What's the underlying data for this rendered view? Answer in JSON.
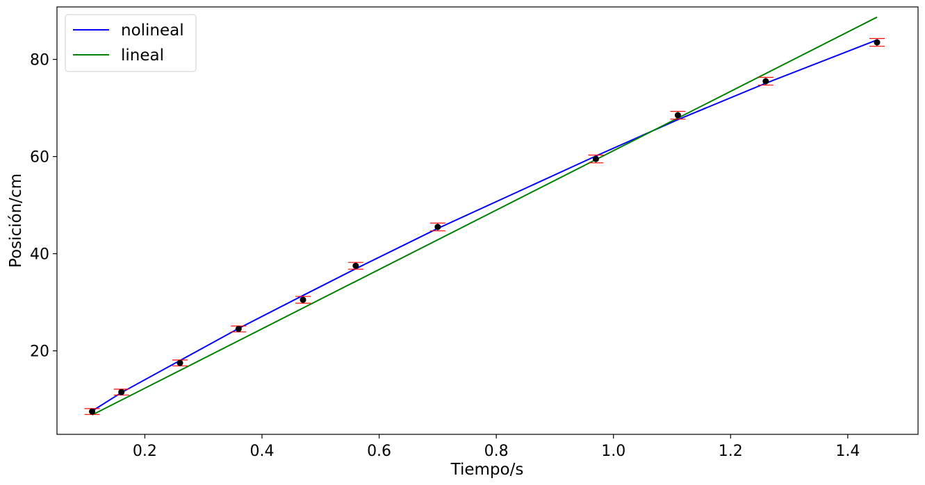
{
  "chart_data": {
    "type": "scatter",
    "xlabel": "Tiempo/s",
    "ylabel": "Posición/cm",
    "xlim": [
      0.05,
      1.52
    ],
    "ylim": [
      2.8,
      90.8
    ],
    "xticks": [
      {
        "value": 0.2,
        "label": "0.2"
      },
      {
        "value": 0.4,
        "label": "0.4"
      },
      {
        "value": 0.6,
        "label": "0.6"
      },
      {
        "value": 0.8,
        "label": "0.8"
      },
      {
        "value": 1.0,
        "label": "1.0"
      },
      {
        "value": 1.2,
        "label": "1.2"
      },
      {
        "value": 1.4,
        "label": "1.4"
      }
    ],
    "yticks": [
      {
        "value": 20,
        "label": "20"
      },
      {
        "value": 40,
        "label": "40"
      },
      {
        "value": 60,
        "label": "60"
      },
      {
        "value": 80,
        "label": "80"
      }
    ],
    "grid": false,
    "legend_position": "top-left",
    "measurements": {
      "x": [
        0.11,
        0.16,
        0.26,
        0.36,
        0.47,
        0.56,
        0.7,
        0.97,
        1.11,
        1.26,
        1.45
      ],
      "y": [
        7.5,
        11.5,
        17.5,
        24.5,
        30.5,
        37.5,
        45.5,
        59.5,
        68.5,
        75.5,
        83.5
      ],
      "yerr": [
        0.6,
        0.6,
        0.6,
        0.6,
        0.7,
        0.7,
        0.8,
        0.8,
        0.8,
        0.8,
        0.8
      ],
      "marker_color": "#000000",
      "errorbar_color": "#ff0000"
    },
    "series": [
      {
        "name": "nolineal",
        "color": "#0000ff",
        "x": [
          0.11,
          0.16,
          0.26,
          0.36,
          0.47,
          0.56,
          0.7,
          0.97,
          1.11,
          1.26,
          1.45
        ],
        "y": [
          7.6,
          11.4,
          18.0,
          24.6,
          31.4,
          36.9,
          45.2,
          60.1,
          67.6,
          75.1,
          84.0
        ]
      },
      {
        "name": "lineal",
        "color": "#008000",
        "x": [
          0.11,
          1.45
        ],
        "y": [
          6.8,
          88.7
        ]
      }
    ]
  }
}
